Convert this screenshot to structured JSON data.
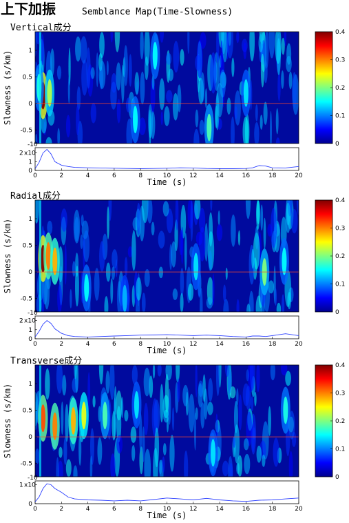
{
  "title": "上下加振",
  "subtitle": "Semblance Map(Time-Slowness)",
  "colors": {
    "trace": "#2b3fff",
    "zero_line": "#ff4a2a",
    "map_low": "#000a9e",
    "map_high": "#8b0000"
  },
  "colorbar": {
    "type": "colorbar",
    "colormap": "jet",
    "ticks": [
      "0",
      "0.1",
      "0.2",
      "0.3",
      "0.4"
    ],
    "range": [
      0,
      0.4
    ]
  },
  "chart_data": [
    {
      "type": "heatmap",
      "title": "Vertical成分",
      "ylabel": "Slowness (s/km)",
      "xlim": [
        0,
        20
      ],
      "ylim": [
        -0.75,
        1.35
      ],
      "yticks": [
        "-0.5",
        "0",
        "0.5",
        "1"
      ],
      "zrange": [
        0,
        0.4
      ],
      "hotspots": [
        {
          "t": 0.6,
          "s": 0.15,
          "v": 0.4
        },
        {
          "t": 1.1,
          "s": 0.2,
          "v": 0.22
        },
        {
          "t": 0.3,
          "s": 0.3,
          "v": 0.16
        },
        {
          "t": 13.2,
          "s": -0.45,
          "v": 0.18
        },
        {
          "t": 9.1,
          "s": 0.9,
          "v": 0.15
        },
        {
          "t": 7.6,
          "s": -0.3,
          "v": 0.15
        },
        {
          "t": 16.0,
          "s": 0.2,
          "v": 0.14
        }
      ],
      "trace": {
        "type": "line",
        "xlabel": "Time (s)",
        "xticks": [
          "0",
          "2",
          "4",
          "6",
          "8",
          "10",
          "12",
          "14",
          "16",
          "18",
          "20"
        ],
        "y_scale_label": "x10",
        "y_exponent": "-10",
        "yticks": [
          "0",
          "1",
          "2"
        ],
        "ylim": [
          0,
          2.6
        ],
        "x": [
          0,
          0.3,
          0.6,
          0.9,
          1.2,
          1.5,
          2,
          2.5,
          3,
          4,
          5,
          6,
          7,
          8,
          9,
          10,
          11,
          12,
          13,
          14,
          15,
          16,
          16.5,
          17,
          17.5,
          18,
          19,
          20
        ],
        "y": [
          0.2,
          0.9,
          2.0,
          2.4,
          1.9,
          1.0,
          0.6,
          0.45,
          0.35,
          0.3,
          0.28,
          0.25,
          0.22,
          0.2,
          0.22,
          0.25,
          0.3,
          0.28,
          0.22,
          0.2,
          0.2,
          0.22,
          0.3,
          0.55,
          0.5,
          0.3,
          0.28,
          0.45
        ]
      }
    },
    {
      "type": "heatmap",
      "title": "Radial成分",
      "ylabel": "Slowness (s/km)",
      "xlim": [
        0,
        20
      ],
      "ylim": [
        -0.75,
        1.35
      ],
      "yticks": [
        "-0.5",
        "0",
        "0.5",
        "1"
      ],
      "zrange": [
        0,
        0.4
      ],
      "hotspots": [
        {
          "t": 0.6,
          "s": 0.25,
          "v": 0.4
        },
        {
          "t": 1.0,
          "s": 0.3,
          "v": 0.3
        },
        {
          "t": 1.5,
          "s": 0.2,
          "v": 0.28
        },
        {
          "t": 17.4,
          "s": 0.0,
          "v": 0.2
        },
        {
          "t": 18.9,
          "s": 0.2,
          "v": 0.15
        },
        {
          "t": 3.9,
          "s": -0.3,
          "v": 0.15
        },
        {
          "t": 12.2,
          "s": 0.1,
          "v": 0.14
        },
        {
          "t": 6.8,
          "s": -0.5,
          "v": 0.12
        }
      ],
      "trace": {
        "type": "line",
        "xlabel": "Time (s)",
        "xticks": [
          "0",
          "2",
          "4",
          "6",
          "8",
          "10",
          "12",
          "14",
          "16",
          "18",
          "20"
        ],
        "y_scale_label": "x10",
        "y_exponent": "-10",
        "yticks": [
          "0",
          "1",
          "2"
        ],
        "ylim": [
          0,
          2.5
        ],
        "x": [
          0,
          0.3,
          0.6,
          0.9,
          1.2,
          1.5,
          2,
          2.5,
          3,
          4,
          5,
          6,
          7,
          8,
          9,
          10,
          11,
          12,
          13,
          14,
          15,
          16,
          16.5,
          17,
          17.5,
          18,
          19,
          20
        ],
        "y": [
          0.2,
          0.8,
          1.6,
          2.0,
          1.7,
          1.1,
          0.6,
          0.35,
          0.25,
          0.2,
          0.25,
          0.3,
          0.35,
          0.4,
          0.42,
          0.45,
          0.4,
          0.35,
          0.4,
          0.35,
          0.25,
          0.2,
          0.3,
          0.3,
          0.25,
          0.35,
          0.55,
          0.35
        ]
      }
    },
    {
      "type": "heatmap",
      "title": "Transverse成分",
      "ylabel": "Slowness (s/km)",
      "xlim": [
        0,
        20
      ],
      "ylim": [
        -0.75,
        1.35
      ],
      "yticks": [
        "-0.5",
        "0",
        "0.5",
        "1"
      ],
      "zrange": [
        0,
        0.4
      ],
      "hotspots": [
        {
          "t": 0.6,
          "s": 0.35,
          "v": 0.32
        },
        {
          "t": 1.5,
          "s": 0.2,
          "v": 0.3
        },
        {
          "t": 2.9,
          "s": 0.3,
          "v": 0.28
        },
        {
          "t": 3.7,
          "s": 0.4,
          "v": 0.24
        },
        {
          "t": 5.3,
          "s": 0.4,
          "v": 0.18
        },
        {
          "t": 19.0,
          "s": 0.5,
          "v": 0.16
        },
        {
          "t": 13.5,
          "s": -0.3,
          "v": 0.14
        },
        {
          "t": 7.7,
          "s": 0.6,
          "v": 0.14
        }
      ],
      "trace": {
        "type": "line",
        "xlabel": "Time (s)",
        "xticks": [
          "0",
          "2",
          "4",
          "6",
          "8",
          "10",
          "12",
          "14",
          "16",
          "18",
          "20"
        ],
        "y_scale_label": "x10",
        "y_exponent": "-10",
        "yticks": [
          "0",
          "1"
        ],
        "ylim": [
          0,
          1.2
        ],
        "x": [
          0,
          0.3,
          0.6,
          0.9,
          1.2,
          1.5,
          2,
          2.5,
          3,
          4,
          5,
          6,
          7,
          8,
          9,
          10,
          11,
          12,
          13,
          14,
          15,
          16,
          17,
          18,
          19,
          20
        ],
        "y": [
          0.1,
          0.35,
          0.8,
          1.05,
          1.0,
          0.8,
          0.6,
          0.35,
          0.25,
          0.2,
          0.18,
          0.15,
          0.18,
          0.15,
          0.22,
          0.3,
          0.25,
          0.2,
          0.28,
          0.2,
          0.15,
          0.12,
          0.18,
          0.2,
          0.25,
          0.3
        ]
      }
    }
  ]
}
